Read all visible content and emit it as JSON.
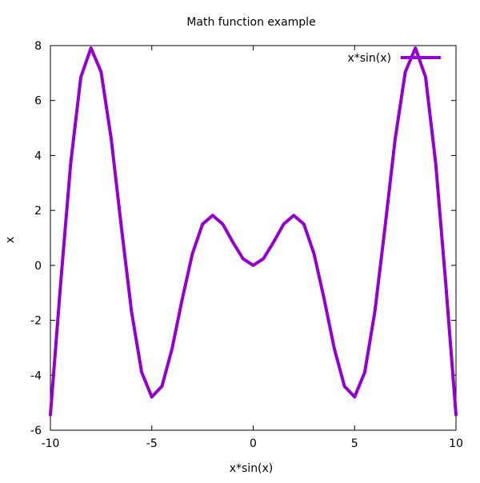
{
  "chart_data": {
    "type": "line",
    "title": "Math function example",
    "xlabel": "x*sin(x)",
    "ylabel": "x",
    "xlim": [
      -10,
      10
    ],
    "ylim": [
      -6,
      8
    ],
    "xticks": [
      -10,
      -5,
      0,
      5,
      10
    ],
    "xtick_labels": [
      "-10",
      "-5",
      "0",
      "5",
      "10"
    ],
    "yticks": [
      -6,
      -4,
      -2,
      0,
      2,
      4,
      6,
      8
    ],
    "ytick_labels": [
      "-6",
      "-4",
      "-2",
      "0",
      "2",
      "4",
      "6",
      "8"
    ],
    "grid": false,
    "legend_position": "top-right",
    "series": [
      {
        "name": "x*sin(x)",
        "color": "#9400d3",
        "x": [
          -10,
          -9.5,
          -9,
          -8.5,
          -8,
          -7.5,
          -7,
          -6.5,
          -6,
          -5.5,
          -5,
          -4.5,
          -4,
          -3.5,
          -3,
          -2.5,
          -2,
          -1.5,
          -1,
          -0.5,
          0,
          0.5,
          1,
          1.5,
          2,
          2.5,
          3,
          3.5,
          4,
          4.5,
          5,
          5.5,
          6,
          6.5,
          7,
          7.5,
          8,
          8.5,
          9,
          9.5,
          10
        ],
        "y": [
          -5.44,
          -0.71,
          3.71,
          6.85,
          7.91,
          7.04,
          4.6,
          1.39,
          -1.68,
          -3.89,
          -4.79,
          -4.4,
          -3.03,
          -1.23,
          0.42,
          1.5,
          1.82,
          1.5,
          0.84,
          0.24,
          0,
          0.24,
          0.84,
          1.5,
          1.82,
          1.5,
          0.42,
          -1.23,
          -3.03,
          -4.4,
          -4.79,
          -3.89,
          -1.68,
          1.39,
          4.6,
          7.04,
          7.91,
          6.85,
          3.71,
          -0.71,
          -5.44
        ]
      }
    ]
  }
}
